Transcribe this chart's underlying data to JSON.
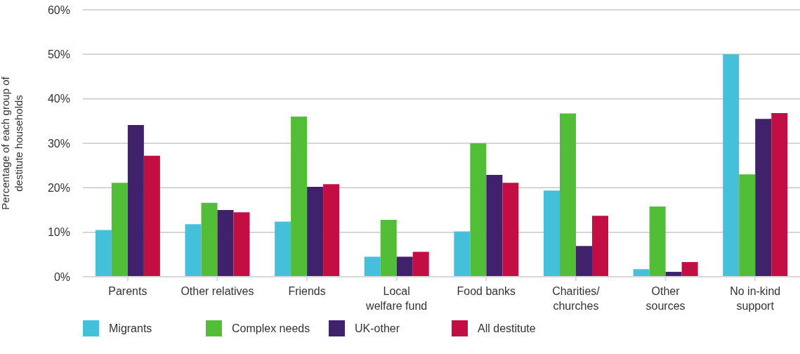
{
  "chart_data": {
    "type": "bar",
    "ylabel": "Percentage of each group of\ndestitute households",
    "categories": [
      "Parents",
      "Other relatives",
      "Friends",
      "Local\nwelfare fund",
      "Food banks",
      "Charities/\nchurches",
      "Other\nsources",
      "No in-kind\nsupport"
    ],
    "series": [
      {
        "name": "Migrants",
        "color": "#44c0db",
        "values": [
          10.5,
          11.8,
          12.4,
          4.5,
          10.2,
          19.4,
          1.7,
          50
        ]
      },
      {
        "name": "Complex needs",
        "color": "#52bd37",
        "values": [
          21.1,
          16.6,
          36.0,
          12.8,
          30.0,
          36.7,
          15.8,
          23.0
        ]
      },
      {
        "name": "UK-other",
        "color": "#40216b",
        "values": [
          34.1,
          15.0,
          20.2,
          4.5,
          22.9,
          6.9,
          1.1,
          35.5
        ]
      },
      {
        "name": "All destitute",
        "color": "#c30e43",
        "values": [
          27.2,
          14.5,
          20.8,
          5.6,
          21.1,
          13.7,
          3.3,
          36.8
        ]
      }
    ],
    "ylim": [
      0,
      60
    ],
    "yticks": [
      {
        "value": 0,
        "label": "0%"
      },
      {
        "value": 10,
        "label": "10%"
      },
      {
        "value": 20,
        "label": "20%"
      },
      {
        "value": 30,
        "label": "30%"
      },
      {
        "value": 40,
        "label": "40%"
      },
      {
        "value": 50,
        "label": "50%"
      },
      {
        "value": 60,
        "label": "60%"
      }
    ],
    "grid": "y",
    "legend": "bottom left"
  }
}
